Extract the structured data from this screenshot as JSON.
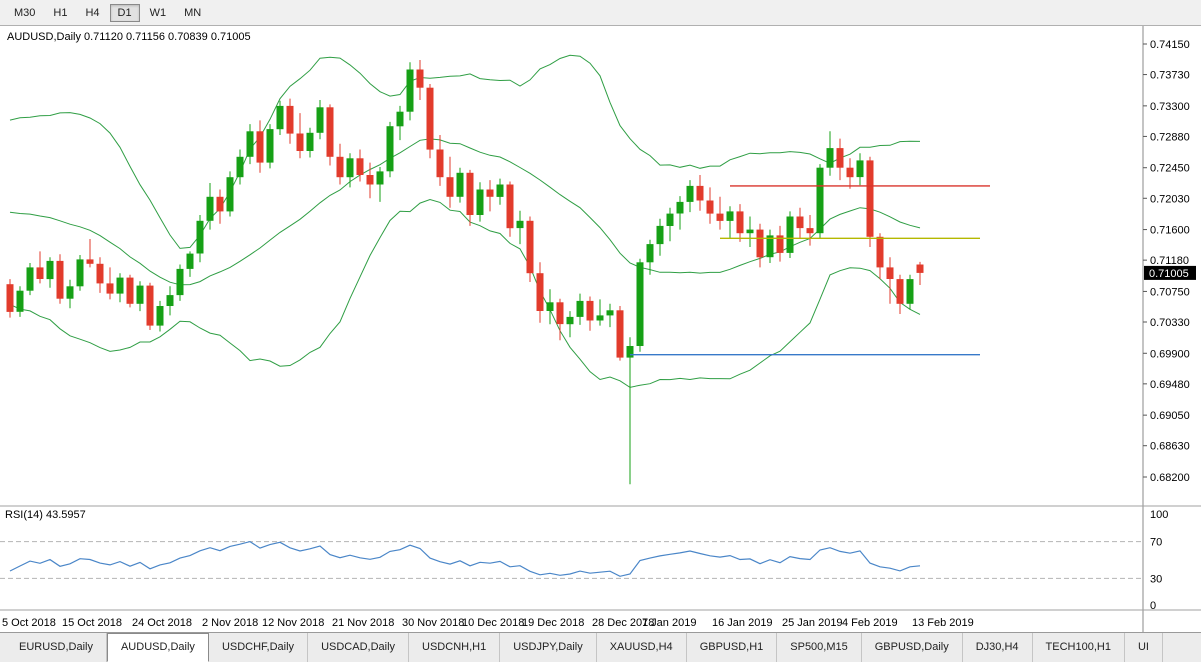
{
  "toolbar": {
    "timeframes": [
      "M30",
      "H1",
      "H4",
      "D1",
      "W1",
      "MN"
    ],
    "selected": "D1"
  },
  "indicator": {
    "rsi_text": "RSI(14) 43.5957"
  },
  "tabs": {
    "items": [
      "EURUSD,Daily",
      "AUDUSD,Daily",
      "USDCHF,Daily",
      "USDCAD,Daily",
      "USDCNH,H1",
      "USDJPY,Daily",
      "XAUUSD,H4",
      "GBPUSD,H1",
      "SP500,M15",
      "GBPUSD,Daily",
      "DJ30,H4",
      "TECH100,H1",
      "UI"
    ],
    "selected": "AUDUSD,Daily"
  },
  "chart_data": {
    "type": "candlestick",
    "symbol": "AUDUSD",
    "timeframe": "Daily",
    "title": "AUDUSD,Daily 0.71120 0.71156 0.70839 0.71005",
    "ohlc_label": {
      "open": "0.71120",
      "high": "0.71156",
      "low": "0.70839",
      "close": "0.71005"
    },
    "current_price": "0.71005",
    "colors": {
      "bull": "#16a016",
      "bear": "#e23b2c",
      "bands": "#2f9e44",
      "rsi": "#4a86c8",
      "axis_text": "#000000",
      "badge_bg": "#000000",
      "badge_text": "#ffffff"
    },
    "price_ticks": [
      "0.74150",
      "0.73730",
      "0.73300",
      "0.72880",
      "0.72450",
      "0.72030",
      "0.71600",
      "0.71180",
      "0.70750",
      "0.70330",
      "0.69900",
      "0.69480",
      "0.69050",
      "0.68630",
      "0.68200"
    ],
    "x_labels": [
      [
        0,
        "5 Oct 2018"
      ],
      [
        6,
        "15 Oct 2018"
      ],
      [
        13,
        "24 Oct 2018"
      ],
      [
        20,
        "2 Nov 2018"
      ],
      [
        26,
        "12 Nov 2018"
      ],
      [
        33,
        "21 Nov 2018"
      ],
      [
        40,
        "30 Nov 2018"
      ],
      [
        46,
        "10 Dec 2018"
      ],
      [
        52,
        "19 Dec 2018"
      ],
      [
        59,
        "28 Dec 2018"
      ],
      [
        64,
        "7 Jan 2019"
      ],
      [
        71,
        "16 Jan 2019"
      ],
      [
        78,
        "25 Jan 2019"
      ],
      [
        84,
        "4 Feb 2019"
      ],
      [
        91,
        "13 Feb 2019"
      ]
    ],
    "overlays": {
      "bollinger": {
        "period": 20,
        "deviation": 2
      }
    },
    "rsi": {
      "label": "RSI(14)",
      "value": "43.5957",
      "period": 14,
      "levels": [
        100,
        70,
        30,
        0
      ]
    },
    "hlines": [
      {
        "name": "resistance-line",
        "price": 0.722,
        "from": 72,
        "to": 98,
        "color": "#d9342b"
      },
      {
        "name": "mid-level-line",
        "price": 0.7148,
        "from": 71,
        "to": 97,
        "color": "#b5b800"
      },
      {
        "name": "support-line",
        "price": 0.6988,
        "from": 62,
        "to": 97,
        "color": "#3779c9"
      }
    ],
    "pre_closes": [
      0.711,
      0.7125,
      0.7145,
      0.716,
      0.7155,
      0.7175,
      0.719,
      0.721,
      0.723,
      0.7255,
      0.727,
      0.7285,
      0.726,
      0.724,
      0.7225,
      0.7205,
      0.718,
      0.712,
      0.709
    ],
    "candles": [
      [
        0.7085,
        0.7092,
        0.7039,
        0.7047
      ],
      [
        0.7047,
        0.7082,
        0.704,
        0.7076
      ],
      [
        0.7076,
        0.7114,
        0.707,
        0.7108
      ],
      [
        0.7108,
        0.713,
        0.7086,
        0.7092
      ],
      [
        0.7092,
        0.7122,
        0.708,
        0.7117
      ],
      [
        0.7117,
        0.7126,
        0.7058,
        0.7065
      ],
      [
        0.7065,
        0.7091,
        0.7052,
        0.7082
      ],
      [
        0.7082,
        0.7125,
        0.7076,
        0.7119
      ],
      [
        0.7119,
        0.7147,
        0.7108,
        0.7113
      ],
      [
        0.7113,
        0.7122,
        0.7073,
        0.7086
      ],
      [
        0.7086,
        0.7108,
        0.7064,
        0.7072
      ],
      [
        0.7072,
        0.71,
        0.706,
        0.7094
      ],
      [
        0.7094,
        0.7098,
        0.7053,
        0.7058
      ],
      [
        0.7058,
        0.7089,
        0.7048,
        0.7083
      ],
      [
        0.7083,
        0.7087,
        0.7022,
        0.7028
      ],
      [
        0.7028,
        0.7062,
        0.702,
        0.7055
      ],
      [
        0.7055,
        0.7082,
        0.7042,
        0.707
      ],
      [
        0.707,
        0.7112,
        0.7062,
        0.7106
      ],
      [
        0.7106,
        0.713,
        0.7095,
        0.7127
      ],
      [
        0.7127,
        0.718,
        0.7115,
        0.7172
      ],
      [
        0.7172,
        0.7224,
        0.716,
        0.7205
      ],
      [
        0.7205,
        0.7215,
        0.7168,
        0.7185
      ],
      [
        0.7185,
        0.724,
        0.7178,
        0.7232
      ],
      [
        0.7232,
        0.727,
        0.7222,
        0.726
      ],
      [
        0.726,
        0.7305,
        0.725,
        0.7295
      ],
      [
        0.7295,
        0.731,
        0.7238,
        0.7252
      ],
      [
        0.7252,
        0.7305,
        0.7244,
        0.7298
      ],
      [
        0.7298,
        0.7337,
        0.729,
        0.733
      ],
      [
        0.733,
        0.734,
        0.7278,
        0.7292
      ],
      [
        0.7292,
        0.732,
        0.7258,
        0.7268
      ],
      [
        0.7268,
        0.73,
        0.7259,
        0.7293
      ],
      [
        0.7293,
        0.7338,
        0.7284,
        0.7328
      ],
      [
        0.7328,
        0.7332,
        0.7248,
        0.726
      ],
      [
        0.726,
        0.7278,
        0.7222,
        0.7232
      ],
      [
        0.7232,
        0.7265,
        0.7218,
        0.7258
      ],
      [
        0.7258,
        0.727,
        0.7226,
        0.7235
      ],
      [
        0.7235,
        0.7252,
        0.7203,
        0.7222
      ],
      [
        0.7222,
        0.7246,
        0.7198,
        0.724
      ],
      [
        0.724,
        0.7308,
        0.7232,
        0.7302
      ],
      [
        0.7302,
        0.733,
        0.7283,
        0.7322
      ],
      [
        0.7322,
        0.739,
        0.731,
        0.738
      ],
      [
        0.738,
        0.7393,
        0.7338,
        0.7355
      ],
      [
        0.7355,
        0.736,
        0.7258,
        0.727
      ],
      [
        0.727,
        0.729,
        0.722,
        0.7232
      ],
      [
        0.7232,
        0.726,
        0.719,
        0.7205
      ],
      [
        0.7205,
        0.7245,
        0.7197,
        0.7238
      ],
      [
        0.7238,
        0.7242,
        0.7165,
        0.718
      ],
      [
        0.718,
        0.7225,
        0.7171,
        0.7215
      ],
      [
        0.7215,
        0.7228,
        0.7185,
        0.7205
      ],
      [
        0.7205,
        0.723,
        0.7194,
        0.7222
      ],
      [
        0.7222,
        0.7226,
        0.715,
        0.7162
      ],
      [
        0.7162,
        0.7186,
        0.714,
        0.7172
      ],
      [
        0.7172,
        0.7178,
        0.7088,
        0.71
      ],
      [
        0.71,
        0.7115,
        0.7032,
        0.7048
      ],
      [
        0.7048,
        0.7078,
        0.703,
        0.706
      ],
      [
        0.706,
        0.7065,
        0.7008,
        0.703
      ],
      [
        0.703,
        0.7048,
        0.7012,
        0.704
      ],
      [
        0.704,
        0.7072,
        0.7029,
        0.7062
      ],
      [
        0.7062,
        0.7068,
        0.7021,
        0.7035
      ],
      [
        0.7035,
        0.7064,
        0.7028,
        0.7042
      ],
      [
        0.7042,
        0.7058,
        0.7026,
        0.7049
      ],
      [
        0.7049,
        0.7055,
        0.698,
        0.6984
      ],
      [
        0.6984,
        0.7012,
        0.681,
        0.7
      ],
      [
        0.7,
        0.712,
        0.6992,
        0.7115
      ],
      [
        0.7115,
        0.7146,
        0.7098,
        0.714
      ],
      [
        0.714,
        0.7175,
        0.7124,
        0.7165
      ],
      [
        0.7165,
        0.719,
        0.7144,
        0.7182
      ],
      [
        0.7182,
        0.7206,
        0.716,
        0.7198
      ],
      [
        0.7198,
        0.7228,
        0.7184,
        0.722
      ],
      [
        0.722,
        0.7235,
        0.7186,
        0.72
      ],
      [
        0.72,
        0.7218,
        0.7168,
        0.7182
      ],
      [
        0.7182,
        0.7205,
        0.716,
        0.7172
      ],
      [
        0.7172,
        0.7192,
        0.7148,
        0.7185
      ],
      [
        0.7185,
        0.7195,
        0.7143,
        0.7155
      ],
      [
        0.7155,
        0.7178,
        0.7136,
        0.716
      ],
      [
        0.716,
        0.7168,
        0.7108,
        0.7122
      ],
      [
        0.7122,
        0.716,
        0.7114,
        0.7152
      ],
      [
        0.7152,
        0.7165,
        0.7116,
        0.7128
      ],
      [
        0.7128,
        0.7185,
        0.7121,
        0.7178
      ],
      [
        0.7178,
        0.719,
        0.7148,
        0.7162
      ],
      [
        0.7162,
        0.718,
        0.7138,
        0.7155
      ],
      [
        0.7155,
        0.725,
        0.7147,
        0.7245
      ],
      [
        0.7245,
        0.7295,
        0.7234,
        0.7272
      ],
      [
        0.7272,
        0.7285,
        0.7228,
        0.7245
      ],
      [
        0.7245,
        0.7258,
        0.7216,
        0.7232
      ],
      [
        0.7232,
        0.7265,
        0.7221,
        0.7255
      ],
      [
        0.7255,
        0.726,
        0.7136,
        0.715
      ],
      [
        0.715,
        0.7155,
        0.7092,
        0.7108
      ],
      [
        0.7108,
        0.7122,
        0.7058,
        0.7092
      ],
      [
        0.7092,
        0.7098,
        0.7044,
        0.7058
      ],
      [
        0.7058,
        0.7098,
        0.705,
        0.7092
      ],
      [
        0.7112,
        0.71156,
        0.70839,
        0.71005
      ]
    ]
  }
}
